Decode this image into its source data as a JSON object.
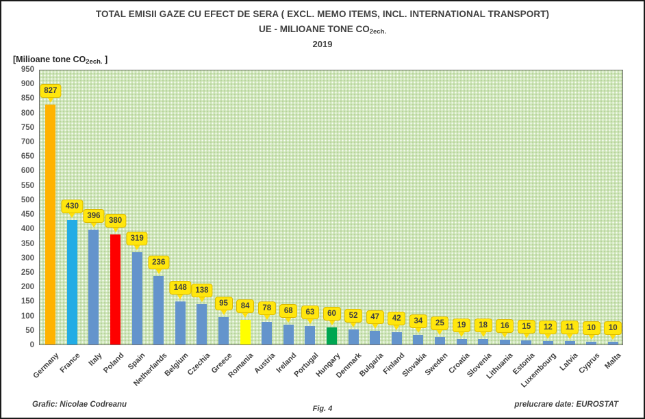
{
  "header": {
    "title_line1": "TOTAL EMISII GAZE CU EFECT DE SERA ( EXCL. MEMO ITEMS, INCL. INTERNATIONAL TRANSPORT)",
    "title_line2_prefix": "UE - MILIOANE TONE CO",
    "title_line2_sub": "2ech.",
    "title_line3": "2019"
  },
  "y_axis_title": {
    "prefix": "[Milioane tone CO",
    "sub": "2ech.",
    "suffix": " ]"
  },
  "footer": {
    "left": "Grafic: Nicolae Codreanu",
    "center": "Fig. 4",
    "right": "prelucrare date: EUROSTAT"
  },
  "chart_data": {
    "type": "bar",
    "title": "TOTAL EMISII GAZE CU EFECT DE SERA ( EXCL. MEMO ITEMS, INCL. INTERNATIONAL TRANSPORT) UE - MILIOANE TONE CO2ech. 2019",
    "xlabel": "",
    "ylabel": "[Milioane tone CO2ech. ]",
    "ylim": [
      0,
      950
    ],
    "ytick_step": 50,
    "grid": false,
    "legend": false,
    "categories": [
      "Germany",
      "France",
      "Italy",
      "Poland",
      "Spain",
      "Netherlands",
      "Belgium",
      "Czechia",
      "Greece",
      "Romania",
      "Austria",
      "Ireland",
      "Portugal",
      "Hungary",
      "Denmark",
      "Bulgaria",
      "Finland",
      "Slovakia",
      "Sweden",
      "Croatia",
      "Slovenia",
      "Lithuania",
      "Estonia",
      "Luxembourg",
      "Latvia",
      "Cyprus",
      "Malta"
    ],
    "values": [
      827,
      430,
      396,
      380,
      319,
      236,
      148,
      138,
      95,
      84,
      78,
      68,
      63,
      60,
      52,
      47,
      42,
      34,
      25,
      19,
      18,
      16,
      15,
      12,
      11,
      10,
      10
    ],
    "bar_colors": [
      "#ffb300",
      "#22ace5",
      "#6494cc",
      "#fe0000",
      "#6494cc",
      "#6494cc",
      "#6494cc",
      "#6494cc",
      "#6494cc",
      "#ffff00",
      "#6494cc",
      "#6494cc",
      "#6494cc",
      "#00a651",
      "#6494cc",
      "#6494cc",
      "#6494cc",
      "#6494cc",
      "#6494cc",
      "#6494cc",
      "#6494cc",
      "#6494cc",
      "#6494cc",
      "#6494cc",
      "#6494cc",
      "#6494cc",
      "#6494cc"
    ],
    "colors": {
      "default_bar": "#6494cc",
      "highlight_germany": "#ffb300",
      "highlight_france": "#22ace5",
      "highlight_poland": "#fe0000",
      "highlight_romania": "#ffff00",
      "highlight_hungary": "#00a651",
      "plot_background": "#cde4b6",
      "callout_fill": "#ffe60d",
      "callout_border": "#dcba00",
      "text": "#404040"
    },
    "data_label_style": "yellow-callout-above-each-bar"
  }
}
